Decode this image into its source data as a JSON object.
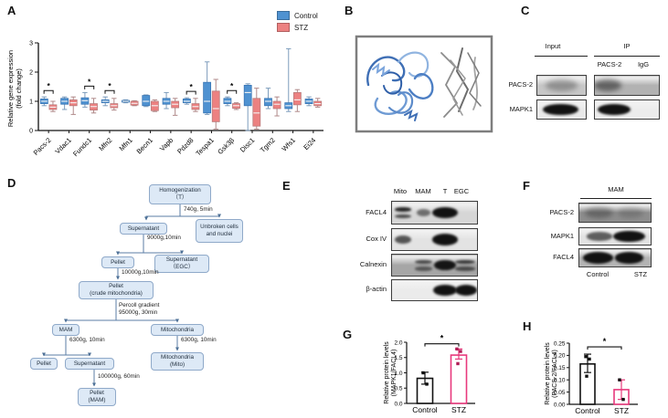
{
  "panels": {
    "A": {
      "label": "A"
    },
    "B": {
      "label": "B"
    },
    "C": {
      "label": "C"
    },
    "D": {
      "label": "D"
    },
    "E": {
      "label": "E"
    },
    "F": {
      "label": "F"
    },
    "G": {
      "label": "G"
    },
    "H": {
      "label": "H"
    }
  },
  "colors": {
    "control_blue": "#4f92d1",
    "stz_salmon": "#ec8181",
    "stz_pink": "#e8397c"
  },
  "chart_data": [
    {
      "id": "panel-A",
      "type": "box",
      "ylabel_lines": [
        "Relative gene expression",
        "(fold change)"
      ],
      "ylim": [
        0,
        3
      ],
      "yticks": [
        0,
        1,
        2,
        3
      ],
      "grid": false,
      "legend_position": "top-right",
      "legend": [
        {
          "name": "Control",
          "color": "#4f92d1"
        },
        {
          "name": "STZ",
          "color": "#ec8181"
        }
      ],
      "categories": [
        "Pacs-2",
        "Vdac1",
        "Fundc1",
        "Mfn2",
        "Mfn1",
        "Becn1",
        "Vapb",
        "Pdzd8",
        "Tespa1",
        "Gsk3β",
        "Disc1",
        "Tgm2",
        "Wfs1",
        "Ei24"
      ],
      "significant_indices": [
        0,
        2,
        3,
        7,
        9
      ],
      "sig_marker": "*",
      "series": [
        {
          "name": "Control",
          "color": "#4f92d1",
          "edge": "#3a76b4",
          "whisker": "#7d9cbc",
          "boxes_lo_q1_med_q3_hi": [
            [
              0.85,
              0.92,
              1.0,
              1.08,
              1.15
            ],
            [
              0.72,
              0.9,
              1.0,
              1.1,
              1.15
            ],
            [
              0.8,
              0.9,
              1.02,
              1.12,
              1.3
            ],
            [
              0.85,
              0.95,
              1.0,
              1.05,
              1.15
            ],
            [
              0.95,
              0.97,
              1.0,
              1.03,
              1.05
            ],
            [
              0.82,
              0.85,
              1.0,
              1.2,
              1.22
            ],
            [
              0.75,
              0.9,
              1.0,
              1.1,
              1.3
            ],
            [
              0.9,
              0.95,
              1.0,
              1.08,
              1.12
            ],
            [
              0.55,
              0.6,
              1.0,
              1.65,
              2.35
            ],
            [
              0.85,
              0.92,
              1.0,
              1.1,
              1.15
            ],
            [
              0.0,
              0.85,
              1.3,
              1.55,
              1.6
            ],
            [
              0.75,
              0.85,
              1.0,
              1.1,
              1.45
            ],
            [
              0.65,
              0.75,
              0.85,
              0.95,
              2.8
            ],
            [
              0.85,
              0.92,
              1.0,
              1.08,
              1.15
            ]
          ]
        },
        {
          "name": "STZ",
          "color": "#ec8181",
          "edge": "#b97c7c",
          "whisker": "#b08a8a",
          "boxes_lo_q1_med_q3_hi": [
            [
              0.65,
              0.72,
              0.8,
              0.88,
              1.0
            ],
            [
              0.55,
              0.85,
              0.95,
              1.05,
              1.15
            ],
            [
              0.6,
              0.7,
              0.82,
              0.92,
              1.1
            ],
            [
              0.7,
              0.78,
              0.85,
              0.92,
              1.1
            ],
            [
              0.85,
              0.87,
              0.93,
              1.0,
              1.02
            ],
            [
              0.65,
              0.68,
              0.85,
              1.0,
              1.05
            ],
            [
              0.52,
              0.78,
              0.9,
              1.0,
              1.1
            ],
            [
              0.65,
              0.72,
              0.82,
              0.92,
              1.1
            ],
            [
              0.05,
              0.3,
              0.75,
              1.35,
              1.75
            ],
            [
              0.72,
              0.76,
              0.85,
              0.92,
              0.95
            ],
            [
              0.05,
              0.15,
              0.6,
              1.1,
              1.45
            ],
            [
              0.5,
              0.75,
              0.9,
              1.0,
              1.15
            ],
            [
              0.65,
              0.88,
              1.05,
              1.3,
              1.4
            ],
            [
              0.8,
              0.85,
              0.92,
              1.0,
              1.1
            ]
          ]
        }
      ]
    },
    {
      "id": "panel-G",
      "type": "bar",
      "ylabel_lines": [
        "Relative  protein levels",
        "(MAPK1/FACL4)"
      ],
      "categories": [
        "Control",
        "STZ"
      ],
      "values": [
        0.82,
        1.58
      ],
      "errors_lo_hi": [
        [
          0.63,
          1.02
        ],
        [
          1.45,
          1.78
        ]
      ],
      "points": [
        [
          1.0,
          0.63
        ],
        [
          1.78,
          1.7,
          1.3
        ]
      ],
      "ylim": [
        0,
        2
      ],
      "yticks": [
        0,
        0.5,
        1,
        1.5,
        2
      ],
      "tick_decimals": 1,
      "bar_colors": [
        "#111111",
        "#e8397c"
      ],
      "point_colors": [
        "#111111",
        "#b01d56"
      ],
      "sig": "*",
      "sig_y": 1.95
    },
    {
      "id": "panel-H",
      "type": "bar",
      "ylabel_lines": [
        "Relative  protein levels",
        "(PACS-2/FACL4)"
      ],
      "categories": [
        "Control",
        "STZ"
      ],
      "values": [
        0.165,
        0.06
      ],
      "errors_lo_hi": [
        [
          0.13,
          0.205
        ],
        [
          0.02,
          0.1
        ]
      ],
      "points": [
        [
          0.195,
          0.185,
          0.115
        ],
        [
          0.1,
          0.02
        ]
      ],
      "ylim": [
        0,
        0.25
      ],
      "yticks": [
        0,
        0.05,
        0.1,
        0.15,
        0.2,
        0.25
      ],
      "tick_decimals": 2,
      "bar_colors": [
        "#111111",
        "#e8397c"
      ],
      "point_colors": [
        "#111111",
        "#111111"
      ],
      "sig": "*",
      "sig_y": 0.235
    }
  ],
  "blots": {
    "C": {
      "group_labels": [
        "Input",
        "IP"
      ],
      "ip_lane_labels": [
        "PACS-2",
        "IgG"
      ],
      "row_labels": [
        "PACS-2",
        "MAPK1"
      ],
      "boxes": {
        "input_pacs2": {
          "bg": "#c6c6c6",
          "bands": [
            {
              "x": 0.5,
              "v": 0.3,
              "w": 0.66,
              "diffuse": true
            }
          ]
        },
        "ip_pacs2": {
          "bg": "#b2b2b2",
          "bands": [
            {
              "x": 0.2,
              "v": 0.5,
              "w": 0.42,
              "diffuse": true
            }
          ]
        },
        "input_mapk1": {
          "bg": "#e9e9e9",
          "bands": [
            {
              "x": 0.48,
              "v": 1,
              "w": 0.72
            }
          ]
        },
        "ip_mapk1": {
          "bg": "#ececec",
          "bands": [
            {
              "x": 0.3,
              "v": 1,
              "w": 0.52
            }
          ]
        }
      }
    },
    "E": {
      "col_labels": [
        "Mito",
        "MAM",
        "T",
        "EGC"
      ],
      "rows": [
        {
          "label": "FACL4",
          "bg": "#d6d6d6",
          "bands": [
            {
              "x": 0.13,
              "v": 0.85,
              "w": 0.2,
              "double": true
            },
            {
              "x": 0.37,
              "v": 0.45,
              "w": 0.17
            },
            {
              "x": 0.62,
              "v": 1,
              "w": 0.3
            }
          ]
        },
        {
          "label": "Cox IV",
          "bg": "#e3e3e3",
          "bands": [
            {
              "x": 0.13,
              "v": 0.6,
              "w": 0.19
            },
            {
              "x": 0.62,
              "v": 1,
              "w": 0.3
            }
          ]
        },
        {
          "label": "Calnexin",
          "bg": "#a6a6a6",
          "bands": [
            {
              "x": 0.37,
              "v": 0.65,
              "w": 0.2,
              "double": true
            },
            {
              "x": 0.62,
              "v": 0.9,
              "w": 0.26
            },
            {
              "x": 0.86,
              "v": 0.75,
              "w": 0.24,
              "double": true
            }
          ]
        },
        {
          "label": "β-actin",
          "bg": "#ebebeb",
          "bands": [
            {
              "x": 0.62,
              "v": 1,
              "w": 0.28
            },
            {
              "x": 0.87,
              "v": 0.92,
              "w": 0.26
            }
          ]
        }
      ]
    },
    "F": {
      "header": "MAM",
      "col_labels": [
        "Control",
        "STZ"
      ],
      "rows": [
        {
          "label": "PACS-2",
          "bg": "#8d8d8d",
          "bands": [
            {
              "x": 0.28,
              "v": 0.32,
              "w": 0.4,
              "diffuse": true
            },
            {
              "x": 0.72,
              "v": 0.18,
              "w": 0.36,
              "diffuse": true
            }
          ]
        },
        {
          "label": "MAPK1",
          "bg": "#e2e2e2",
          "bands": [
            {
              "x": 0.28,
              "v": 0.55,
              "w": 0.36
            },
            {
              "x": 0.7,
              "v": 1,
              "w": 0.44
            }
          ]
        },
        {
          "label": "FACL4",
          "bg": "#b4b4b4",
          "bands": [
            {
              "x": 0.26,
              "v": 1,
              "w": 0.42
            },
            {
              "x": 0.7,
              "v": 0.95,
              "w": 0.4
            }
          ]
        }
      ]
    }
  },
  "flowchart": {
    "nodes": {
      "homog": {
        "label": "Homogenization\n（T）"
      },
      "sup1": {
        "label": "Supernatant"
      },
      "unbroken": {
        "label": "Unbroken cells\nand nuclei"
      },
      "pellet1": {
        "label": "Pellet"
      },
      "supEGC": {
        "label": "Supernatant\n（EGC）"
      },
      "crude": {
        "label": "Pellet\n(crude mitochondria)"
      },
      "mam": {
        "label": "MAM"
      },
      "mito": {
        "label": "Mitochondria"
      },
      "pellet2": {
        "label": "Pellet"
      },
      "sup2": {
        "label": "Supernatant"
      },
      "mitoFinal": {
        "label": "Mitochondria\n(Mito)"
      },
      "pelletMAM": {
        "label": "Pellet\n(MAM)"
      }
    },
    "edge_labels": {
      "e1": "740g, 5min",
      "e2": "9000g,10min",
      "e3": "10000g,10min",
      "e4": "Percoll gradient\n95000g, 30min",
      "e5": "6300g, 10min",
      "e6": "6300g, 10min",
      "e7": "100000g, 60min"
    }
  }
}
